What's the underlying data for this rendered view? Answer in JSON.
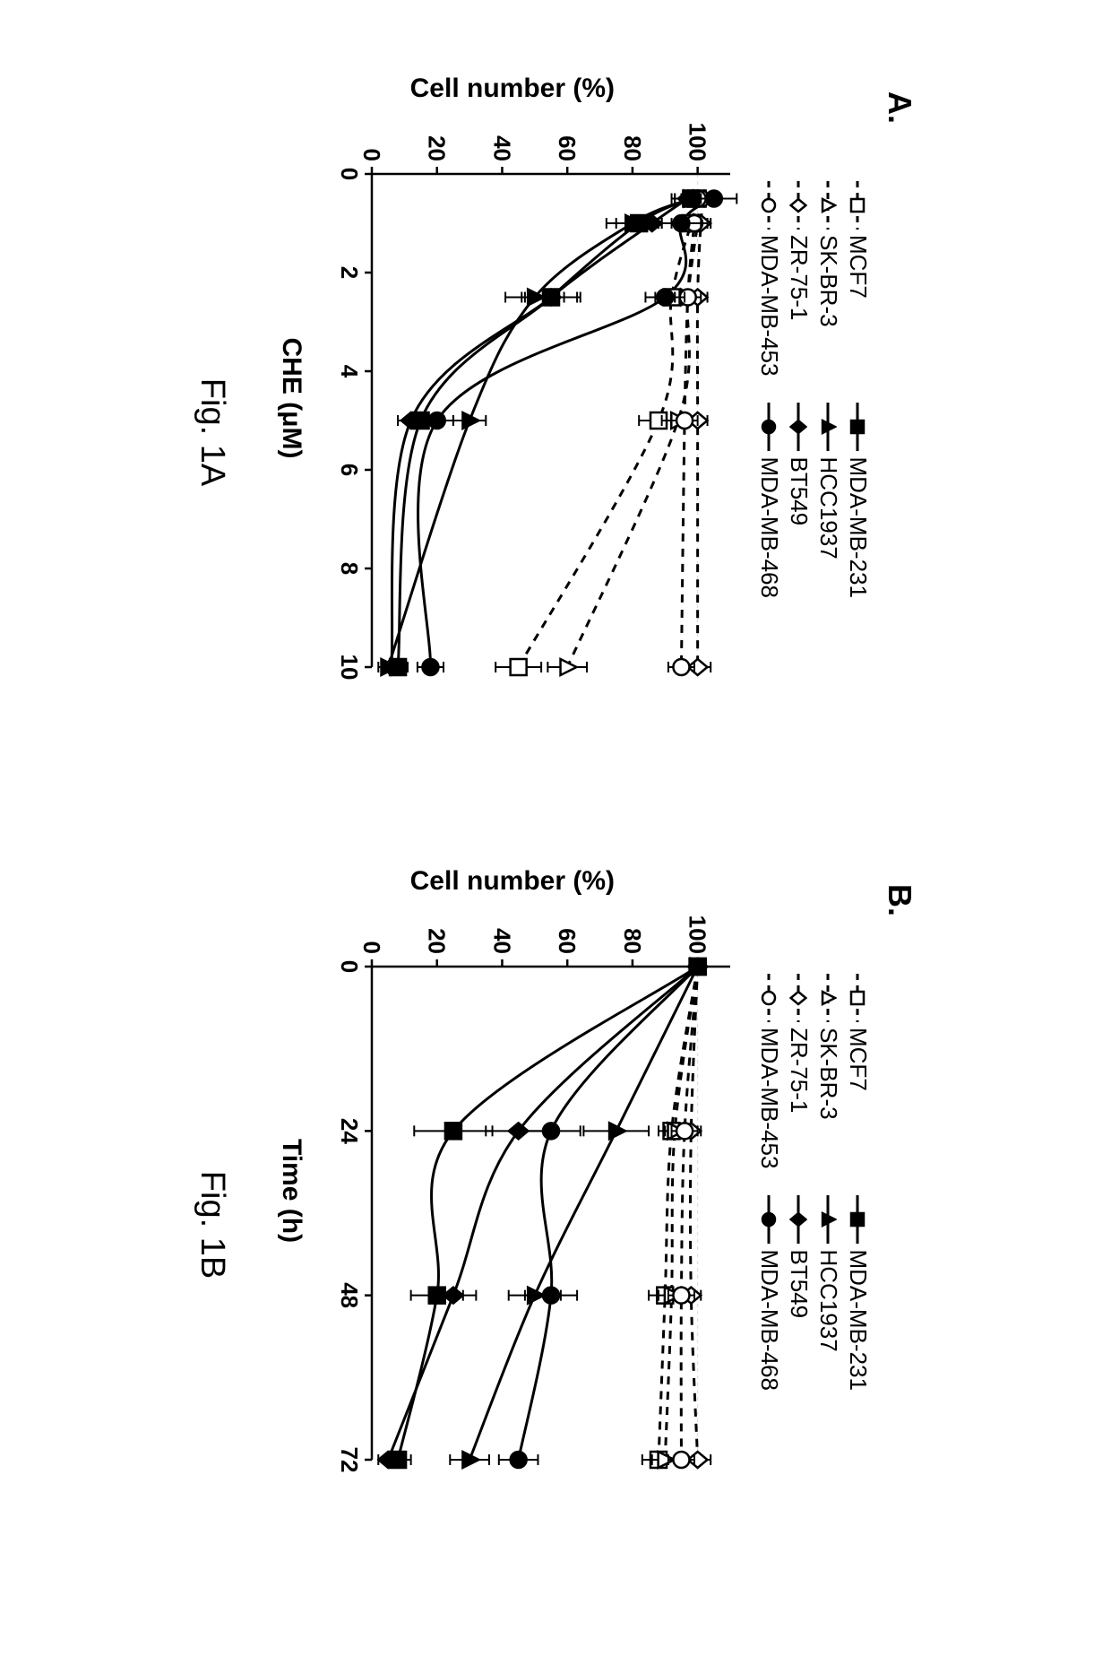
{
  "colors": {
    "axis": "#000000",
    "grid": "#d9d9d9",
    "background": "#ffffff",
    "solid": "#000000",
    "open": "#ffffff",
    "text": "#000000"
  },
  "fonts": {
    "panel_label": 36,
    "legend": 26,
    "axis_label": 30,
    "tick": 26,
    "caption": 38
  },
  "series_meta": [
    {
      "id": "MCF7",
      "label": "MCF7",
      "dash": true,
      "fill": "open",
      "marker": "square"
    },
    {
      "id": "SKBR3",
      "label": "SK-BR-3",
      "dash": true,
      "fill": "open",
      "marker": "triangle"
    },
    {
      "id": "ZR751",
      "label": "ZR-75-1",
      "dash": true,
      "fill": "open",
      "marker": "diamond"
    },
    {
      "id": "MDAMB453",
      "label": "MDA-MB-453",
      "dash": true,
      "fill": "open",
      "marker": "circle"
    },
    {
      "id": "MDAMB231",
      "label": "MDA-MB-231",
      "dash": false,
      "fill": "solid",
      "marker": "square"
    },
    {
      "id": "HCC1937",
      "label": "HCC1937",
      "dash": false,
      "fill": "solid",
      "marker": "triangle"
    },
    {
      "id": "BT549",
      "label": "BT549",
      "dash": false,
      "fill": "solid",
      "marker": "diamond"
    },
    {
      "id": "MDAMB468",
      "label": "MDA-MB-468",
      "dash": false,
      "fill": "solid",
      "marker": "circle"
    }
  ],
  "panelA": {
    "label": "A.",
    "caption": "Fig. 1A",
    "xlabel": "CHE (μM)",
    "ylabel": "Cell number (%)",
    "xlim": [
      0,
      10
    ],
    "ylim": [
      0,
      110
    ],
    "xticks": [
      0,
      2,
      4,
      6,
      8,
      10
    ],
    "yticks": [
      0,
      20,
      40,
      60,
      80,
      100
    ],
    "line_width": 3,
    "marker_size": 9,
    "error_cap": 6,
    "data": {
      "MCF7": {
        "x": [
          0.5,
          1,
          2.5,
          5,
          10
        ],
        "y": [
          100,
          98,
          92,
          88,
          45
        ],
        "err": [
          4,
          4,
          5,
          6,
          7
        ]
      },
      "SKBR3": {
        "x": [
          0.5,
          1,
          2.5,
          5,
          10
        ],
        "y": [
          101,
          100,
          97,
          94,
          60
        ],
        "err": [
          3,
          3,
          4,
          5,
          6
        ]
      },
      "ZR751": {
        "x": [
          0.5,
          1,
          2.5,
          5,
          10
        ],
        "y": [
          102,
          101,
          100,
          100,
          100
        ],
        "err": [
          4,
          3,
          3,
          3,
          4
        ]
      },
      "MDAMB453": {
        "x": [
          0.5,
          1,
          2.5,
          5,
          10
        ],
        "y": [
          100,
          99,
          97,
          96,
          95
        ],
        "err": [
          5,
          4,
          4,
          4,
          4
        ]
      },
      "MDAMB231": {
        "x": [
          0.5,
          1,
          2.5,
          5,
          10
        ],
        "y": [
          98,
          82,
          55,
          15,
          8
        ],
        "err": [
          6,
          7,
          8,
          4,
          3
        ]
      },
      "HCC1937": {
        "x": [
          0.5,
          1,
          2.5,
          5,
          10
        ],
        "y": [
          98,
          80,
          50,
          30,
          5
        ],
        "err": [
          5,
          8,
          9,
          5,
          3
        ]
      },
      "BT549": {
        "x": [
          0.5,
          1,
          2.5,
          5,
          10
        ],
        "y": [
          97,
          86,
          55,
          12,
          6
        ],
        "err": [
          4,
          6,
          9,
          4,
          3
        ]
      },
      "MDAMB468": {
        "x": [
          0.5,
          1,
          2.5,
          5,
          10
        ],
        "y": [
          105,
          95,
          90,
          20,
          18
        ],
        "err": [
          7,
          6,
          6,
          5,
          4
        ]
      }
    }
  },
  "panelB": {
    "label": "B.",
    "caption": "Fig. 1B",
    "xlabel": "Time (h)",
    "ylabel": "Cell number (%)",
    "xlim": [
      0,
      72
    ],
    "ylim": [
      0,
      110
    ],
    "xticks": [
      0,
      24,
      48,
      72
    ],
    "yticks": [
      0,
      20,
      40,
      60,
      80,
      100
    ],
    "line_width": 3,
    "marker_size": 9,
    "error_cap": 6,
    "data": {
      "MCF7": {
        "x": [
          0,
          24,
          48,
          72
        ],
        "y": [
          100,
          92,
          90,
          88
        ],
        "err": [
          0,
          4,
          5,
          5
        ]
      },
      "SKBR3": {
        "x": [
          0,
          24,
          48,
          72
        ],
        "y": [
          100,
          93,
          92,
          90
        ],
        "err": [
          0,
          3,
          4,
          4
        ]
      },
      "ZR751": {
        "x": [
          0,
          24,
          48,
          72
        ],
        "y": [
          100,
          98,
          98,
          100
        ],
        "err": [
          0,
          3,
          3,
          4
        ]
      },
      "MDAMB453": {
        "x": [
          0,
          24,
          48,
          72
        ],
        "y": [
          100,
          96,
          95,
          95
        ],
        "err": [
          0,
          4,
          4,
          4
        ]
      },
      "MDAMB231": {
        "x": [
          0,
          24,
          48,
          72
        ],
        "y": [
          100,
          25,
          20,
          8
        ],
        "err": [
          0,
          12,
          8,
          4
        ]
      },
      "HCC1937": {
        "x": [
          0,
          24,
          48,
          72
        ],
        "y": [
          100,
          75,
          50,
          30
        ],
        "err": [
          0,
          10,
          8,
          6
        ]
      },
      "BT549": {
        "x": [
          0,
          24,
          48,
          72
        ],
        "y": [
          100,
          45,
          25,
          5
        ],
        "err": [
          0,
          10,
          7,
          3
        ]
      },
      "MDAMB468": {
        "x": [
          0,
          24,
          48,
          72
        ],
        "y": [
          100,
          55,
          55,
          45
        ],
        "err": [
          0,
          9,
          8,
          6
        ]
      }
    }
  }
}
